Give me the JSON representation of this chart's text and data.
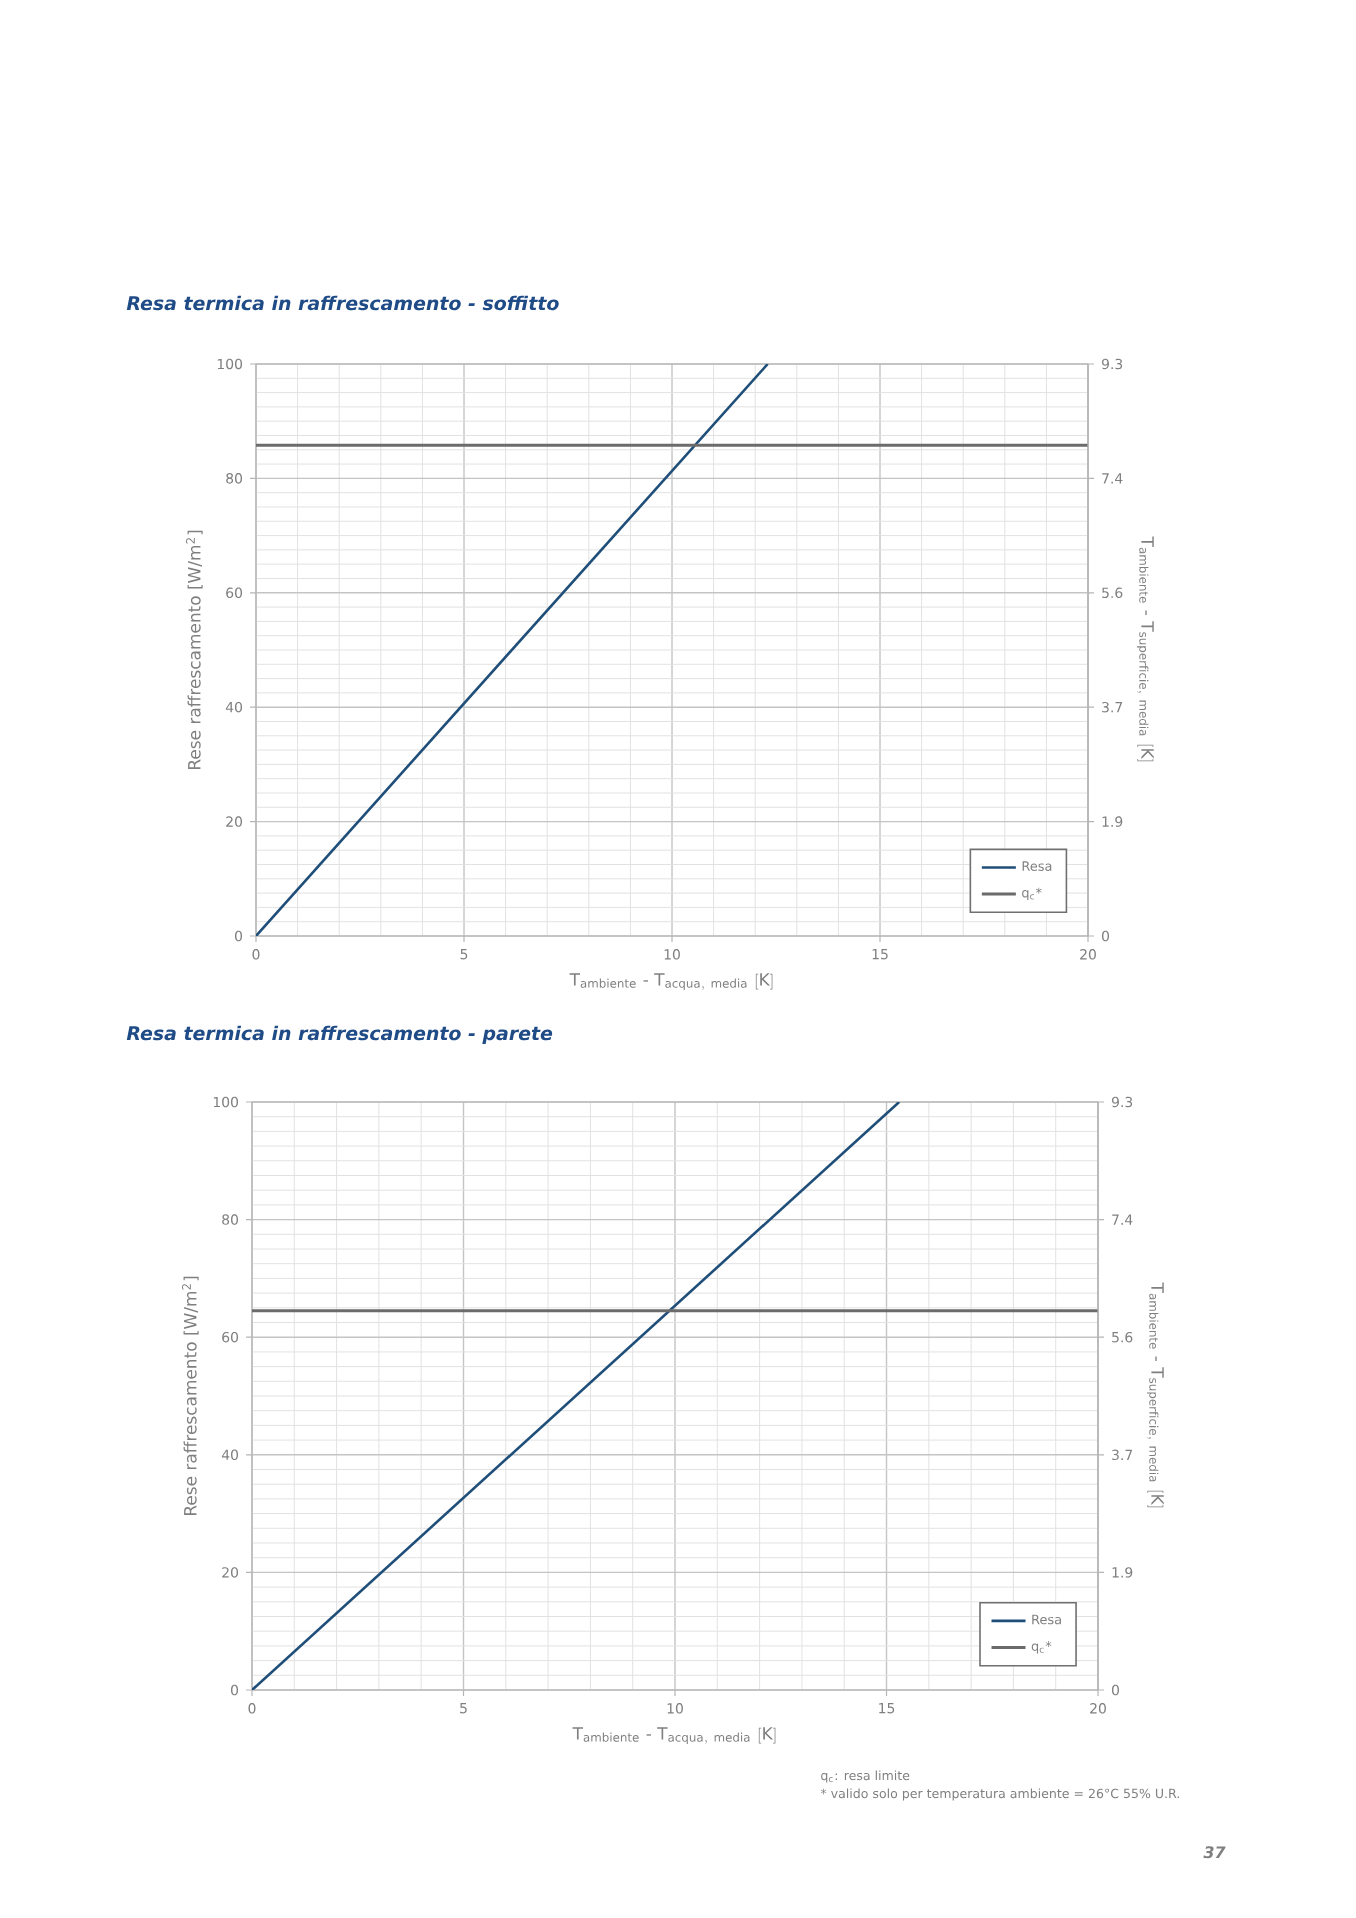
{
  "chart_data": [
    {
      "type": "line",
      "title": "Resa termica in raffrescamento - soffitto",
      "xlabel": "\\mathrm{T}_{\\mathrm{ambiente}}\\ \\mbox{-}\\ \\mathrm{T}_{\\mathrm{acqua,\\ media}}\\ \\mathrm{[K]}",
      "ylabel": "Rese raffrescamento [W/m$^{2}$]",
      "y2label": "\\mathrm{T}_{\\mathrm{ambiente}}\\ \\mbox{-}\\ \\mathrm{T}_{\\mathrm{superficie,\\ media}}\\ \\mathrm{[K]}",
      "series": [
        {
          "name": "Resa",
          "color": "#1f4e79",
          "x": [
            0,
            12.3
          ],
          "values": [
            0,
            100
          ]
        },
        {
          "name": "q$_{c}$*",
          "color": "#6b6b6b",
          "x": [
            0,
            20
          ],
          "values": [
            85.8,
            85.8
          ]
        }
      ],
      "xlim": [
        0,
        20
      ],
      "ylim": [
        0,
        100
      ],
      "y2lim": [
        0,
        9.3
      ],
      "xticks": [
        0,
        5,
        10,
        15,
        20
      ],
      "yticks": [
        0,
        20,
        40,
        60,
        80,
        100
      ],
      "y2ticks": [
        0,
        {
          "value": 1.86,
          "label": "1.9"
        },
        {
          "value": 3.72,
          "label": "3.7"
        },
        {
          "value": 5.58,
          "label": "5.6"
        },
        {
          "value": 7.44,
          "label": "7.4"
        },
        9.3
      ],
      "grid": true,
      "legend": "bottom right",
      "marker": "none",
      "line_style": "solid"
    },
    {
      "type": "line",
      "title": "Resa termica in raffrescamento - parete",
      "xlabel": "\\mathrm{T}_{\\mathrm{ambiente}}\\ \\mbox{-}\\ \\mathrm{T}_{\\mathrm{acqua,\\ media}}\\ \\mathrm{[K]}",
      "ylabel": "Rese raffrescamento [W/m$^{2}$]",
      "y2label": "\\mathrm{T}_{\\mathrm{ambiente}}\\ \\mbox{-}\\ \\mathrm{T}_{\\mathrm{superficie,\\ media}}\\ \\mathrm{[K]}",
      "series": [
        {
          "name": "Resa",
          "color": "#1f4e79",
          "x": [
            0,
            15.3
          ],
          "values": [
            0,
            100
          ]
        },
        {
          "name": "q$_{c}$*",
          "color": "#6b6b6b",
          "x": [
            0,
            20
          ],
          "values": [
            64.5,
            64.5
          ]
        }
      ],
      "xlim": [
        0,
        20
      ],
      "ylim": [
        0,
        100
      ],
      "y2lim": [
        0,
        9.3
      ],
      "xticks": [
        0,
        5,
        10,
        15,
        20
      ],
      "yticks": [
        0,
        20,
        40,
        60,
        80,
        100
      ],
      "y2ticks": [
        0,
        {
          "value": 1.86,
          "label": "1.9"
        },
        {
          "value": 3.72,
          "label": "3.7"
        },
        {
          "value": 5.58,
          "label": "5.6"
        },
        {
          "value": 7.44,
          "label": "7.4"
        },
        9.3
      ],
      "grid": true,
      "legend": "bottom right",
      "marker": "none",
      "line_style": "solid",
      "annotations": [
        "q$_{c}$: resa limite",
        "* valido solo per temperatura ambiente = 26°C 55% U.R.",
        "37"
      ]
    }
  ]
}
